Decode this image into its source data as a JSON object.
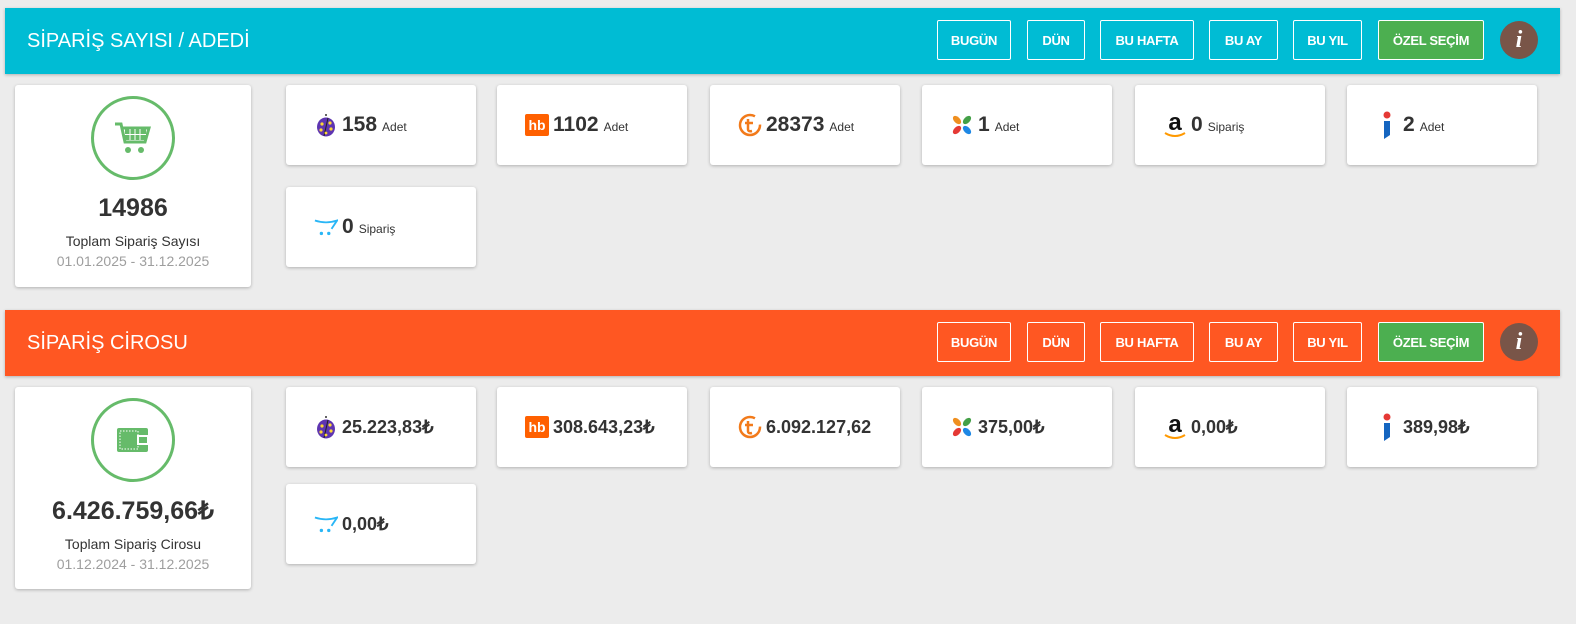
{
  "sections": [
    {
      "title": "SİPARİŞ SAYISI / ADEDİ",
      "color": "#00bcd4",
      "buttons": [
        "BUGÜN",
        "DÜN",
        "BU HAFTA",
        "BU AY",
        "BU YIL",
        "ÖZEL SEÇİM"
      ],
      "info_label": "i",
      "total": {
        "icon": "cart-icon",
        "value": "14986",
        "label": "Toplam Sipariş Sayısı",
        "date_range": "01.01.2025 - 31.12.2025"
      },
      "marketplaces": [
        {
          "icon": "ladybug-icon",
          "value": "158",
          "unit": "Adet"
        },
        {
          "icon": "hb-icon",
          "value": "1102",
          "unit": "Adet"
        },
        {
          "icon": "trendyol-icon",
          "value": "28373",
          "unit": "Adet"
        },
        {
          "icon": "flower-icon",
          "value": "1",
          "unit": "Adet"
        },
        {
          "icon": "amazon-icon",
          "value": "0",
          "unit": "Sipariş"
        },
        {
          "icon": "i-brand-icon",
          "value": "2",
          "unit": "Adet"
        },
        {
          "icon": "opencart-icon",
          "value": "0",
          "unit": "Sipariş"
        }
      ]
    },
    {
      "title": "SİPARİŞ CİROSU",
      "color": "#ff5722",
      "buttons": [
        "BUGÜN",
        "DÜN",
        "BU HAFTA",
        "BU AY",
        "BU YIL",
        "ÖZEL SEÇİM"
      ],
      "info_label": "i",
      "total": {
        "icon": "wallet-icon",
        "value": "6.426.759,66₺",
        "label": "Toplam Sipariş Cirosu",
        "date_range": "01.12.2024 - 31.12.2025"
      },
      "marketplaces": [
        {
          "icon": "ladybug-icon",
          "value": "25.223,83₺"
        },
        {
          "icon": "hb-icon",
          "value": "308.643,23₺"
        },
        {
          "icon": "trendyol-icon",
          "value": "6.092.127,62"
        },
        {
          "icon": "flower-icon",
          "value": "375,00₺"
        },
        {
          "icon": "amazon-icon",
          "value": "0,00₺"
        },
        {
          "icon": "i-brand-icon",
          "value": "389,98₺"
        },
        {
          "icon": "opencart-icon",
          "value": "0,00₺"
        }
      ]
    }
  ],
  "colors": {
    "active_button": "#4caf50",
    "info_button": "#795548",
    "total_circle": "#66bb6a",
    "background": "#ececec"
  }
}
